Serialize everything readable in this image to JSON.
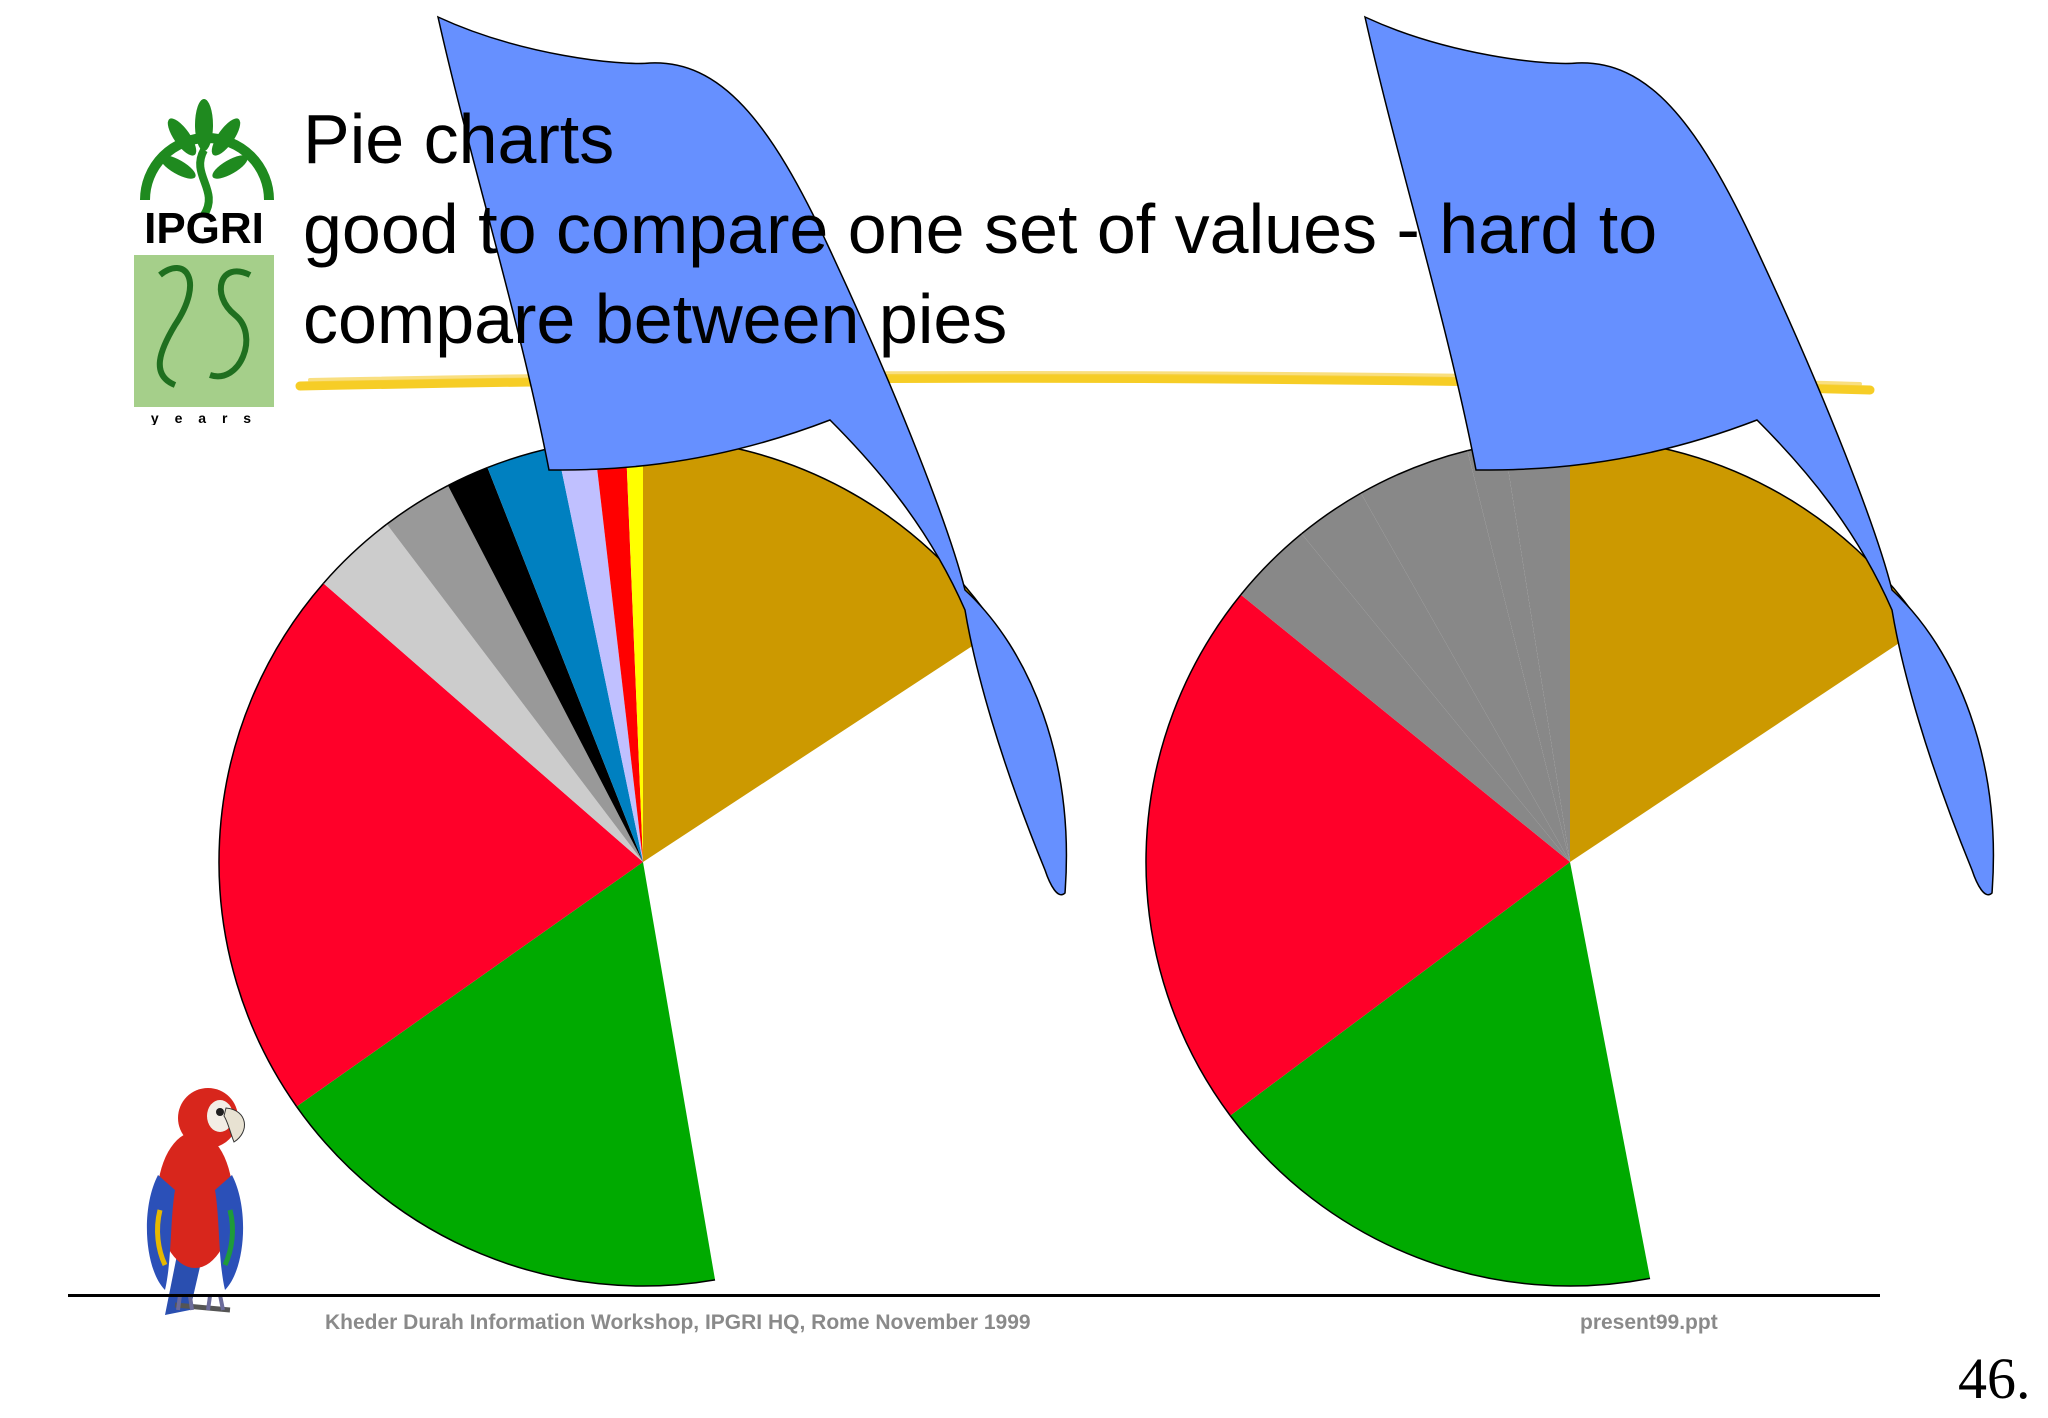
{
  "slide": {
    "title_lines": [
      "Pie charts",
      "good to compare one set of values - hard to",
      "compare between pies"
    ],
    "logo_text": "IPGRI",
    "logo_years": "y e a r s",
    "footer_left": "Kheder Durah Information  Workshop, IPGRI HQ, Rome  November 1999",
    "footer_right": "present99.ppt",
    "page_number": "46."
  },
  "colors": {
    "highlight_stroke": "#f5c400",
    "flag_blue": "#6690ff",
    "logo_green": "#1f8a1f",
    "logo_box": "#a5cf8a",
    "footer_text": "#8a8a8a"
  },
  "icons": [
    "ipgri-logo-icon",
    "parrot-icon"
  ],
  "chart_data": [
    {
      "type": "pie",
      "title": "",
      "slices": [
        {
          "value": 14.5,
          "color": "#cc9900"
        },
        {
          "value": 12.5,
          "color": "#ffffff"
        },
        {
          "value": 16.5,
          "color": "#ffffff"
        },
        {
          "value": 16.5,
          "color": "#00aa00"
        },
        {
          "value": 19.5,
          "color": "#ff0029"
        },
        {
          "value": 3.0,
          "color": "#cccccc"
        },
        {
          "value": 2.5,
          "color": "#999999"
        },
        {
          "value": 1.5,
          "color": "#000000"
        },
        {
          "value": 2.5,
          "color": "#0080c0"
        },
        {
          "value": 1.3,
          "color": "#c0c0ff"
        },
        {
          "value": 1.1,
          "color": "#ff0000"
        },
        {
          "value": 0.6,
          "color": "#ffff00"
        }
      ]
    },
    {
      "type": "pie",
      "title": "",
      "slices": [
        {
          "value": 14.5,
          "color": "#cc9900"
        },
        {
          "value": 12.5,
          "color": "#ffffff"
        },
        {
          "value": 16.5,
          "color": "#ffffff"
        },
        {
          "value": 16.5,
          "color": "#00aa00"
        },
        {
          "value": 19.5,
          "color": "#ff0029"
        },
        {
          "value": 3.0,
          "color": "#888888"
        },
        {
          "value": 2.5,
          "color": "#888888"
        },
        {
          "value": 4.0,
          "color": "#888888"
        },
        {
          "value": 1.3,
          "color": "#888888"
        },
        {
          "value": 2.3,
          "color": "#888888"
        }
      ]
    }
  ]
}
